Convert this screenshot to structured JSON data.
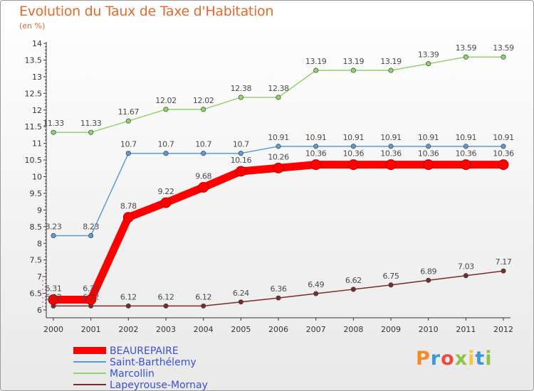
{
  "header": {
    "title": "Evolution du Taux de Taxe d'Habitation",
    "subtitle": "(en %)"
  },
  "logo": {
    "text": "Proxiti",
    "colors": [
      "#f28c28",
      "#3a9ad9",
      "#e84c3d",
      "#8cc63f",
      "#f6c342",
      "#3a9ad9",
      "#8cc63f"
    ]
  },
  "chart_data": {
    "type": "line",
    "x": [
      "2000",
      "2001",
      "2002",
      "2003",
      "2004",
      "2005",
      "2006",
      "2007",
      "2008",
      "2009",
      "2010",
      "2011",
      "2012"
    ],
    "ylim": [
      6,
      14
    ],
    "yticks": [
      "6",
      "6.5",
      "7",
      "7.5",
      "8",
      "8.5",
      "9",
      "9.5",
      "10",
      "10.5",
      "11",
      "11.5",
      "12",
      "12.5",
      "13",
      "13.5",
      "14"
    ],
    "grid": false,
    "legend_position": "bottom-left",
    "series": [
      {
        "name": "BEAUREPAIRE",
        "color": "#ff0000",
        "values": [
          6.31,
          6.31,
          8.78,
          9.22,
          9.68,
          10.16,
          10.26,
          10.36,
          10.36,
          10.36,
          10.36,
          10.36,
          10.36
        ],
        "labels": [
          "6.31",
          "6.31",
          "8.78",
          "9.22",
          "9.68",
          "10.16",
          "10.26",
          "10.36",
          "10.36",
          "10.36",
          "10.36",
          "10.36",
          "10.36"
        ]
      },
      {
        "name": "Saint-Barthélemy",
        "color": "#5b9bd5",
        "values": [
          8.23,
          8.23,
          10.7,
          10.7,
          10.7,
          10.7,
          10.91,
          10.91,
          10.91,
          10.91,
          10.91,
          10.91,
          10.91
        ],
        "labels": [
          "8.23",
          "8.23",
          "10.7",
          "10.7",
          "10.7",
          "10.7",
          "10.91",
          "10.91",
          "10.91",
          "10.91",
          "10.91",
          "10.91",
          "10.91"
        ]
      },
      {
        "name": "Marcollin",
        "color": "#8fd36a",
        "values": [
          11.33,
          11.33,
          11.67,
          12.02,
          12.02,
          12.38,
          12.38,
          13.19,
          13.19,
          13.19,
          13.39,
          13.59,
          13.59
        ],
        "labels": [
          "11.33",
          "11.33",
          "11.67",
          "12.02",
          "12.02",
          "12.38",
          "12.38",
          "13.19",
          "13.19",
          "13.19",
          "13.39",
          "13.59",
          "13.59"
        ]
      },
      {
        "name": "Lapeyrouse-Mornay",
        "color": "#7a2a2a",
        "values": [
          6.12,
          6.12,
          6.12,
          6.12,
          6.12,
          6.24,
          6.36,
          6.49,
          6.62,
          6.75,
          6.89,
          7.03,
          7.17
        ],
        "labels": [
          "6.12",
          "6.12",
          "6.12",
          "6.12",
          "6.12",
          "6.24",
          "6.36",
          "6.49",
          "6.62",
          "6.75",
          "6.89",
          "7.03",
          "7.17"
        ]
      }
    ]
  }
}
